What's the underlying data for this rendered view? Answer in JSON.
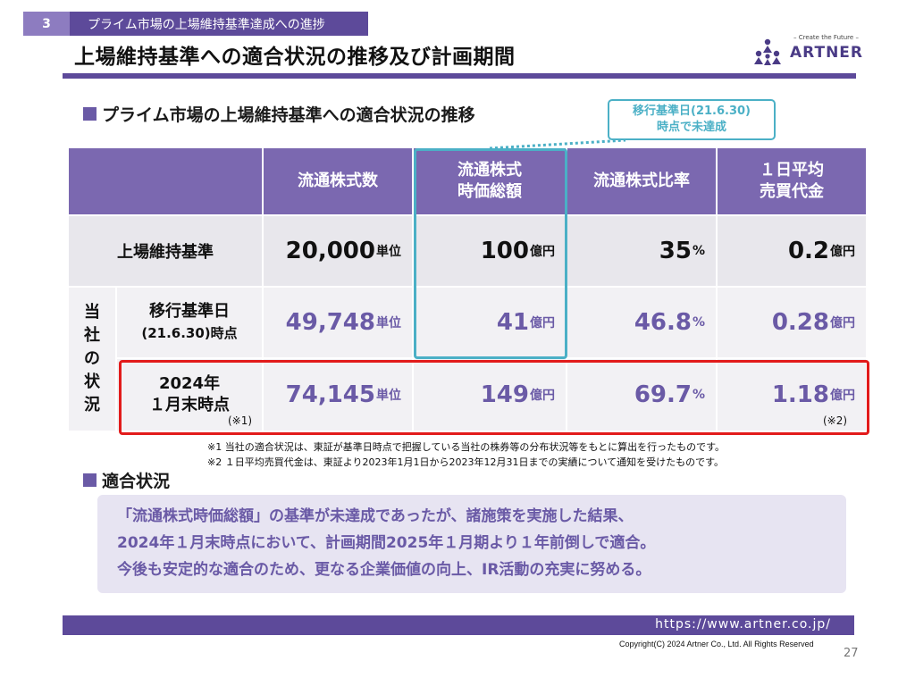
{
  "section": {
    "number": "3",
    "title": "プライム市場の上場維持基準達成への進捗"
  },
  "page_title": "上場維持基準への適合状況の推移及び計画期間",
  "logo": {
    "tagline": "– Create the Future –",
    "name": "ARTNER"
  },
  "subheading": "プライム市場の上場維持基準への適合状況の推移",
  "callout": {
    "line1": "移行基準日(21.6.30)",
    "line2": "時点で未達成"
  },
  "table": {
    "headers": [
      {
        "line1": "流通株式数",
        "line2": ""
      },
      {
        "line1": "流通株式",
        "line2": "時価総額"
      },
      {
        "line1": "流通株式比率",
        "line2": ""
      },
      {
        "line1": "１日平均",
        "line2": "売買代金"
      }
    ],
    "standard_row": {
      "label": "上場維持基準",
      "values": [
        {
          "num": "20,000",
          "unit": "単位"
        },
        {
          "num": "100",
          "unit": "億円"
        },
        {
          "num": "35",
          "unit": "%"
        },
        {
          "num": "0.2",
          "unit": "億円"
        }
      ]
    },
    "company_label": [
      "当",
      "社",
      "の",
      "状",
      "況"
    ],
    "transition_row": {
      "label_line1": "移行基準日",
      "label_line2": "(21.6.30)時点",
      "values": [
        {
          "num": "49,748",
          "unit": "単位"
        },
        {
          "num": "41",
          "unit": "億円"
        },
        {
          "num": "46.8",
          "unit": "%"
        },
        {
          "num": "0.28",
          "unit": "億円"
        }
      ]
    },
    "current_row": {
      "label_line1": "2024年",
      "label_line2": "１月末時点",
      "values": [
        {
          "num": "74,145",
          "unit": "単位"
        },
        {
          "num": "149",
          "unit": "億円"
        },
        {
          "num": "69.7",
          "unit": "%"
        },
        {
          "num": "1.18",
          "unit": "億円"
        }
      ],
      "note1": "(※1)",
      "note2": "(※2)"
    }
  },
  "footnotes": [
    "※1 当社の適合状況は、東証が基準日時点で把握している当社の株券等の分布状況等をもとに算出を行ったものです。",
    "※2 １日平均売買代金は、東証より2023年1月1日から2023年12月31日までの実績について通知を受けたものです。"
  ],
  "subheading2": "適合状況",
  "summary": [
    "「流通株式時価総額」の基準が未達成であったが、諸施策を実施した結果、",
    "2024年１月末時点において、計画期間2025年１月期より１年前倒しで適合。",
    "今後も安定的な適合のため、更なる企業価値の向上、IR活動の充実に努める。"
  ],
  "footer": {
    "url": "https://www.artner.co.jp/",
    "copyright": "Copyright(C) 2024 Artner Co., Ltd. All Rights Reserved",
    "page_number": "27"
  },
  "colors": {
    "purple": "#5d4a9a",
    "header_purple": "#7b68b0",
    "accent_cyan": "#4bb0c6",
    "highlight_red": "#e21b1b"
  }
}
